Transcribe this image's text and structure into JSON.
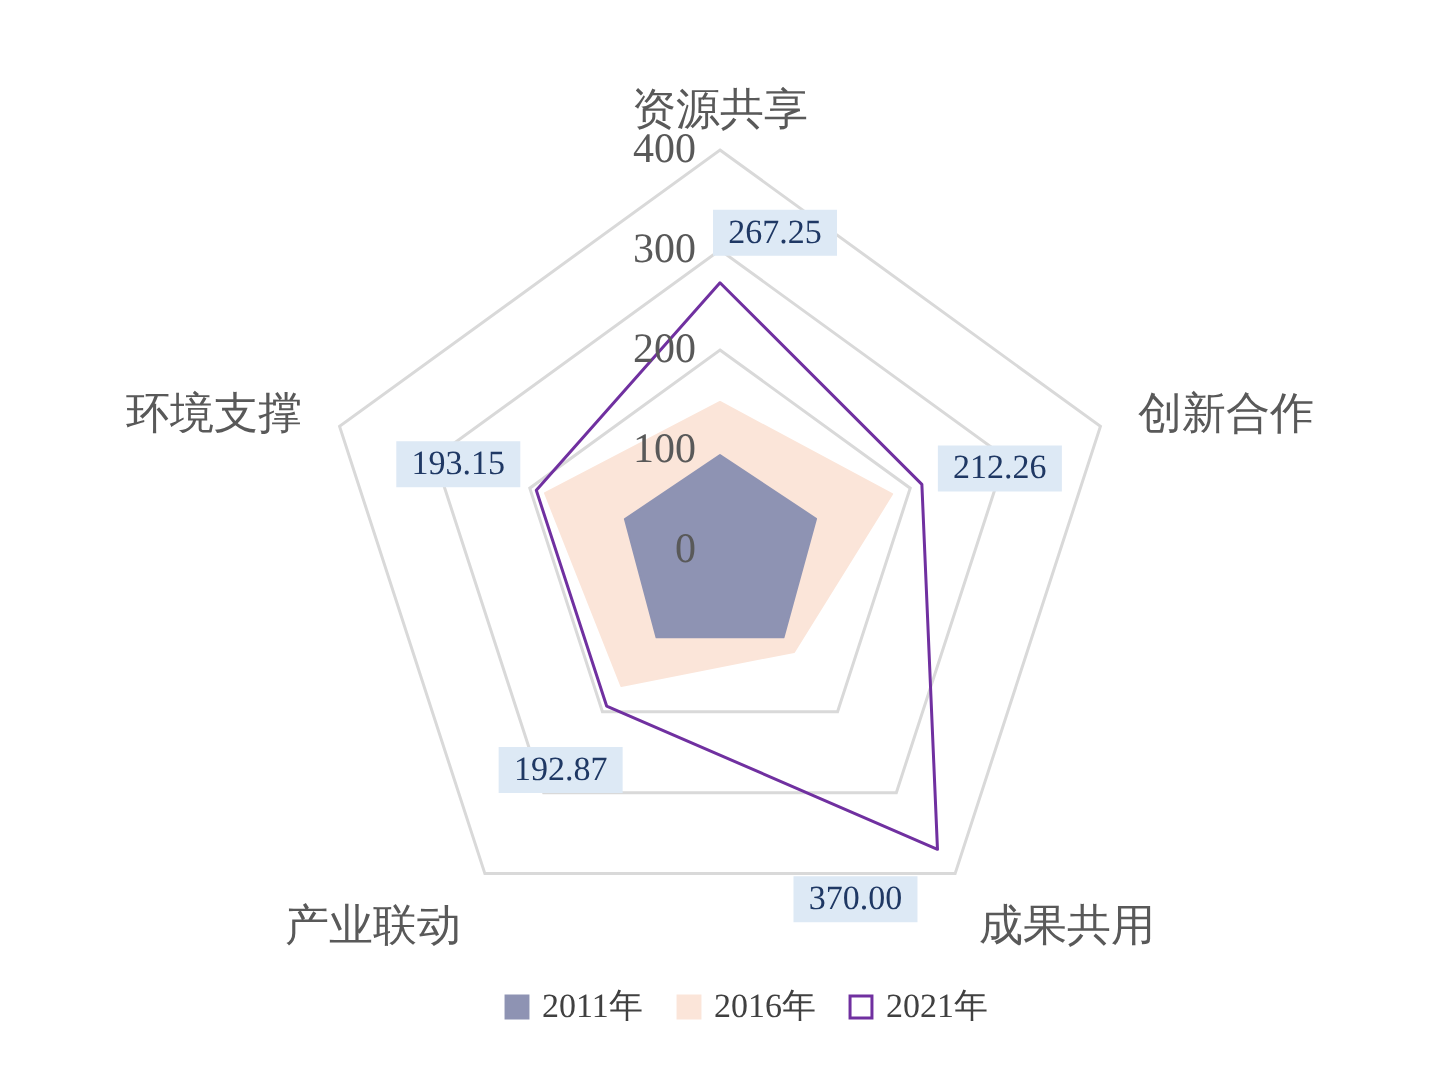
{
  "chart_data": {
    "type": "radar",
    "categories": [
      "资源共享",
      "创新合作",
      "成果共用",
      "产业联动",
      "环境支撑"
    ],
    "series": [
      {
        "name": "2011年",
        "type": "area",
        "color": "#8e93b3",
        "values": [
          95,
          101,
          108,
          108,
          100
        ]
      },
      {
        "name": "2016年",
        "type": "area",
        "color": "#fbe5d9",
        "values": [
          148,
          181,
          126,
          168,
          184
        ]
      },
      {
        "name": "2021年",
        "color": "#7030a0",
        "values": [
          267.25,
          212.26,
          370.0,
          192.87,
          193.15
        ],
        "value_labels": [
          "267.25",
          "212.26",
          "370.00",
          "192.87",
          "193.15"
        ]
      }
    ],
    "ylim": [
      0,
      400
    ],
    "yticks": [
      0,
      100,
      200,
      300,
      400
    ],
    "grid": true,
    "legend": "bottom"
  }
}
